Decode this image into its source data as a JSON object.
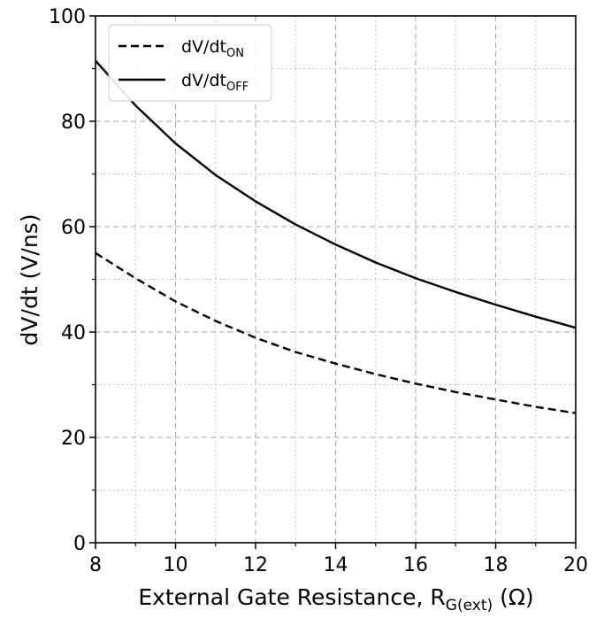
{
  "chart_data": {
    "type": "line",
    "xlabel": "External Gate Resistance, R",
    "xlabel_subscript": "G(ext)",
    "xlabel_suffix": " (Ω)",
    "ylabel": "dV/dt (V/ns)",
    "xlim": [
      8,
      20
    ],
    "ylim": [
      0,
      100
    ],
    "x_ticks": [
      8,
      10,
      12,
      14,
      16,
      18,
      20
    ],
    "y_ticks": [
      0,
      20,
      40,
      60,
      80,
      100
    ],
    "x_tick_labels": [
      "8",
      "10",
      "12",
      "14",
      "16",
      "18",
      "20"
    ],
    "y_tick_labels": [
      "0",
      "20",
      "40",
      "60",
      "80",
      "100"
    ],
    "grid": true,
    "legend_position": "top-left",
    "series": [
      {
        "name": "dV/dt",
        "name_subscript": "ON",
        "style": "dashed",
        "color": "#000000",
        "x": [
          8,
          9,
          10,
          11,
          12,
          13,
          14,
          15,
          16,
          17,
          18,
          19,
          20
        ],
        "y": [
          55,
          50.2,
          45.8,
          42.1,
          38.9,
          36.2,
          34.0,
          32.0,
          30.2,
          28.6,
          27.2,
          25.8,
          24.6
        ]
      },
      {
        "name": "dV/dt",
        "name_subscript": "OFF",
        "style": "solid",
        "color": "#000000",
        "x": [
          8,
          9,
          10,
          11,
          12,
          13,
          14,
          15,
          16,
          17,
          18,
          19,
          20
        ],
        "y": [
          91.5,
          83.0,
          75.8,
          69.8,
          64.8,
          60.4,
          56.6,
          53.2,
          50.2,
          47.6,
          45.2,
          42.9,
          40.8
        ]
      }
    ]
  }
}
